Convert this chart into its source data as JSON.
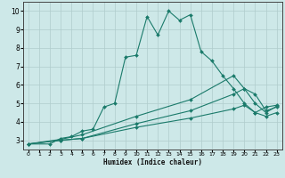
{
  "title": "",
  "xlabel": "Humidex (Indice chaleur)",
  "ylabel": "",
  "background_color": "#cde8e8",
  "grid_color": "#b0cccc",
  "line_color": "#1a7a6a",
  "xlim": [
    -0.5,
    23.5
  ],
  "ylim": [
    2.5,
    10.5
  ],
  "xticks": [
    0,
    1,
    2,
    3,
    4,
    5,
    6,
    7,
    8,
    9,
    10,
    11,
    12,
    13,
    14,
    15,
    16,
    17,
    18,
    19,
    20,
    21,
    22,
    23
  ],
  "yticks": [
    3,
    4,
    5,
    6,
    7,
    8,
    9,
    10
  ],
  "curves": [
    {
      "x": [
        0,
        2,
        3,
        4,
        5,
        6,
        7,
        8,
        9,
        10,
        11,
        12,
        13,
        14,
        15,
        16,
        17,
        18,
        19,
        20,
        21,
        22,
        23
      ],
      "y": [
        2.8,
        2.8,
        3.1,
        3.2,
        3.5,
        3.6,
        4.8,
        5.0,
        7.5,
        7.6,
        9.7,
        8.7,
        10.0,
        9.5,
        9.8,
        7.8,
        7.3,
        6.5,
        5.8,
        5.0,
        4.5,
        4.8,
        4.9
      ],
      "with_markers": true
    },
    {
      "x": [
        0,
        3,
        5,
        10,
        15,
        19,
        20,
        21,
        22,
        23
      ],
      "y": [
        2.8,
        3.05,
        3.3,
        4.3,
        5.2,
        6.5,
        5.8,
        5.5,
        4.6,
        4.8
      ],
      "with_markers": true
    },
    {
      "x": [
        0,
        3,
        5,
        10,
        15,
        19,
        20,
        21,
        22,
        23
      ],
      "y": [
        2.8,
        3.0,
        3.1,
        3.9,
        4.6,
        5.5,
        5.8,
        5.0,
        4.5,
        4.85
      ],
      "with_markers": true
    },
    {
      "x": [
        0,
        3,
        5,
        10,
        15,
        19,
        20,
        21,
        22,
        23
      ],
      "y": [
        2.8,
        3.0,
        3.1,
        3.7,
        4.2,
        4.7,
        4.9,
        4.5,
        4.3,
        4.5
      ],
      "with_markers": true
    }
  ],
  "marker": "D",
  "markersize": 2.0,
  "linewidth": 0.8
}
